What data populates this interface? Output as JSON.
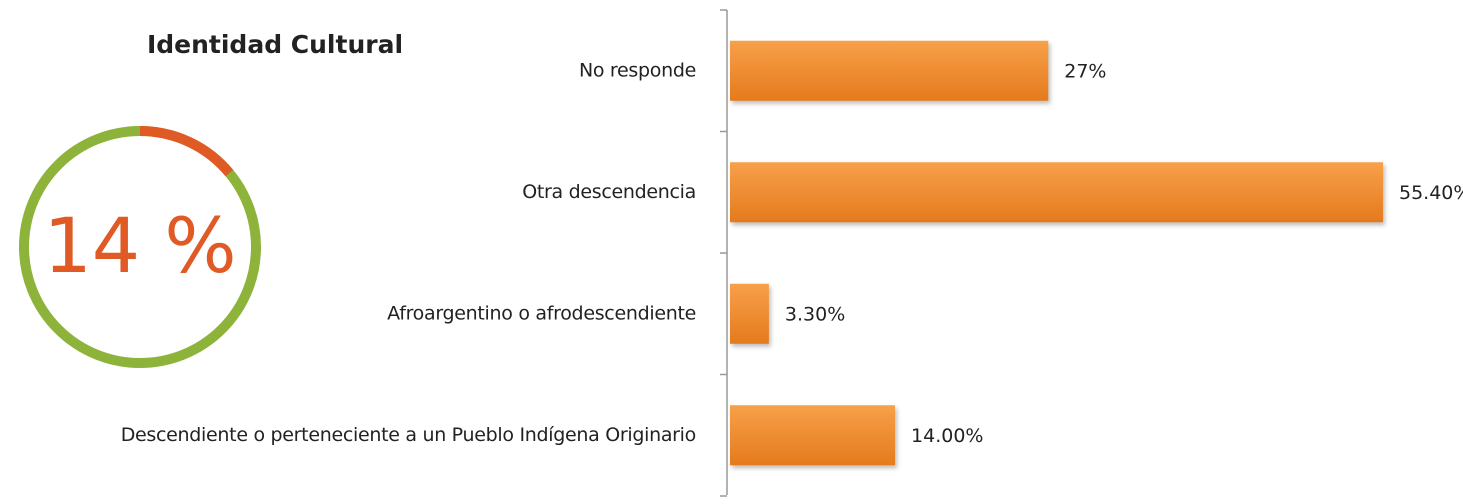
{
  "chart_data": [
    {
      "type": "ring",
      "title": "Identidad Cultural",
      "value": 14,
      "value_label": "14 %",
      "max": 100,
      "color": "#e05a26",
      "track_color": "#8db33a"
    },
    {
      "type": "hbar",
      "categories": [
        "No responde",
        "Otra descendencia",
        "Afroargentino o afrodescendiente",
        "Descendiente o perteneciente a un Pueblo Indígena Originario"
      ],
      "values": [
        27,
        55.4,
        3.3,
        14
      ],
      "value_labels": [
        "27%",
        "55.40%",
        "3.30%",
        "14.00%"
      ],
      "color": "#f28a2e"
    }
  ]
}
